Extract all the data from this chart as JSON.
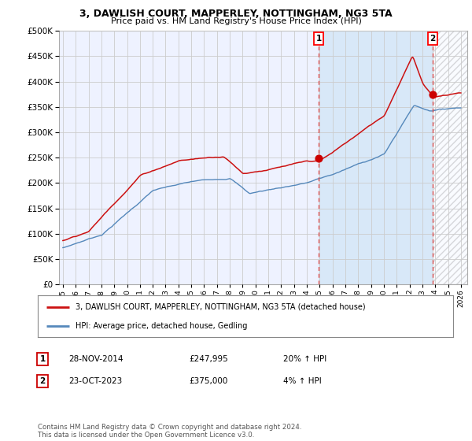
{
  "title": "3, DAWLISH COURT, MAPPERLEY, NOTTINGHAM, NG3 5TA",
  "subtitle": "Price paid vs. HM Land Registry's House Price Index (HPI)",
  "legend_line1": "3, DAWLISH COURT, MAPPERLEY, NOTTINGHAM, NG3 5TA (detached house)",
  "legend_line2": "HPI: Average price, detached house, Gedling",
  "annotation1_label": "1",
  "annotation1_date": "28-NOV-2014",
  "annotation1_price": "£247,995",
  "annotation1_hpi": "20% ↑ HPI",
  "annotation2_label": "2",
  "annotation2_date": "23-OCT-2023",
  "annotation2_price": "£375,000",
  "annotation2_hpi": "4% ↑ HPI",
  "footer": "Contains HM Land Registry data © Crown copyright and database right 2024.\nThis data is licensed under the Open Government Licence v3.0.",
  "sale1_year": 2014.92,
  "sale1_value": 247995,
  "sale2_year": 2023.8,
  "sale2_value": 375000,
  "hpi_color": "#5588bb",
  "price_color": "#cc1111",
  "sale_dot_color": "#cc0000",
  "vline_color": "#dd4444",
  "grid_color": "#cccccc",
  "background_color": "#ffffff",
  "plot_bg_color": "#eef2ff",
  "shade_color": "#d8e8f8",
  "hatch_color": "#cccccc",
  "ylim": [
    0,
    500000
  ],
  "yticks": [
    0,
    50000,
    100000,
    150000,
    200000,
    250000,
    300000,
    350000,
    400000,
    450000,
    500000
  ],
  "xstart": 1995,
  "xend": 2026
}
